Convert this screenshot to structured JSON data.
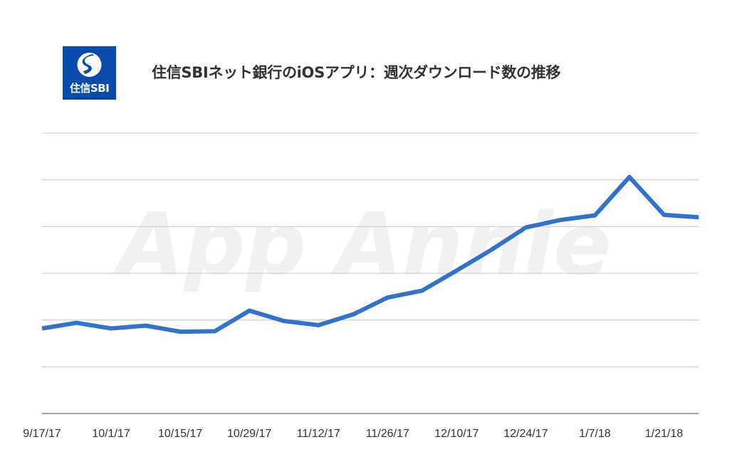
{
  "header": {
    "title": "住信SBIネット銀行のiOSアプリ：週次ダウンロード数の推移",
    "logo_text": "住信SBI"
  },
  "watermark": "App Annie",
  "colors": {
    "line": "#3372c9",
    "grid": "#c8c8c8",
    "axis": "#888888",
    "logo_bg": "#0a4aa8"
  },
  "chart_data": {
    "type": "line",
    "title": "住信SBIネット銀行のiOSアプリ：週次ダウンロード数の推移",
    "xlabel": "",
    "ylabel": "",
    "x_tick_labels": [
      "9/17/17",
      "10/1/17",
      "10/15/17",
      "10/29/17",
      "11/12/17",
      "11/26/17",
      "12/10/17",
      "12/24/17",
      "1/7/18",
      "1/21/18"
    ],
    "x": [
      "9/17/17",
      "9/24/17",
      "10/1/17",
      "10/8/17",
      "10/15/17",
      "10/22/17",
      "10/29/17",
      "11/5/17",
      "11/12/17",
      "11/19/17",
      "11/26/17",
      "12/3/17",
      "12/10/17",
      "12/17/17",
      "12/24/17",
      "12/31/17",
      "1/7/18",
      "1/14/18",
      "1/21/18",
      "1/28/18"
    ],
    "y_unit_note_hidden": true,
    "y_gridlines": 6,
    "grid": true,
    "series": [
      {
        "values": [
          1.82,
          1.94,
          1.82,
          1.88,
          1.75,
          1.76,
          2.2,
          1.98,
          1.89,
          2.12,
          2.48,
          2.63,
          3.06,
          3.5,
          3.98,
          4.14,
          4.24,
          5.06,
          4.25,
          4.2
        ]
      }
    ],
    "ylim": [
      0,
      6
    ]
  }
}
